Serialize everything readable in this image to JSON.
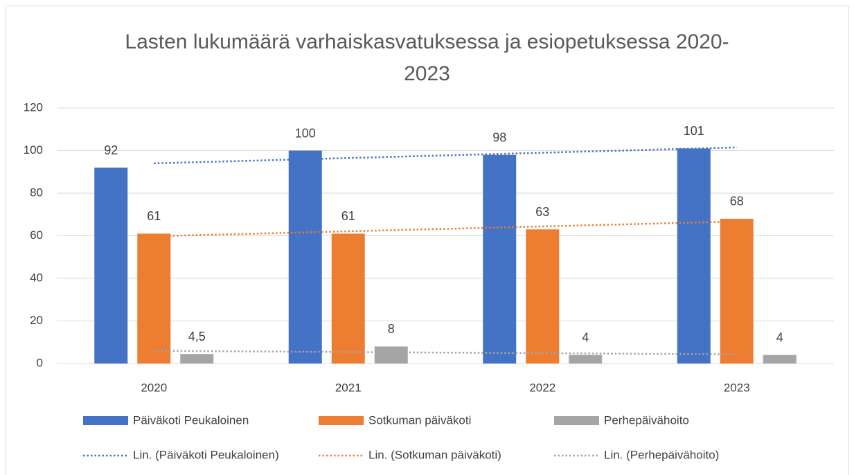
{
  "chart_data": {
    "type": "bar",
    "title": "Lasten lukumäärä varhaiskasvatuksessa ja esiopetuksessa 2020-2023",
    "categories": [
      "2020",
      "2021",
      "2022",
      "2023"
    ],
    "series": [
      {
        "name": "Päiväkoti Peukaloinen",
        "color": "#4472c4",
        "values": [
          92,
          100,
          98,
          101
        ],
        "trendline": "Lin. (Päiväkoti Peukaloinen)"
      },
      {
        "name": "Sotkuman päiväkoti",
        "color": "#ed7d31",
        "values": [
          61,
          61,
          63,
          68
        ],
        "trendline": "Lin. (Sotkuman päiväkoti)"
      },
      {
        "name": "Perhepäivähoito",
        "color": "#a5a5a5",
        "values": [
          4.5,
          8,
          4,
          4
        ],
        "value_labels": [
          "4,5",
          "8",
          "4",
          "4"
        ],
        "trendline": "Lin. (Perhepäivähoito)"
      }
    ],
    "ylim": [
      0,
      120
    ],
    "yticks": [
      0,
      20,
      40,
      60,
      80,
      100,
      120
    ],
    "grid": true,
    "legend": "bottom"
  }
}
